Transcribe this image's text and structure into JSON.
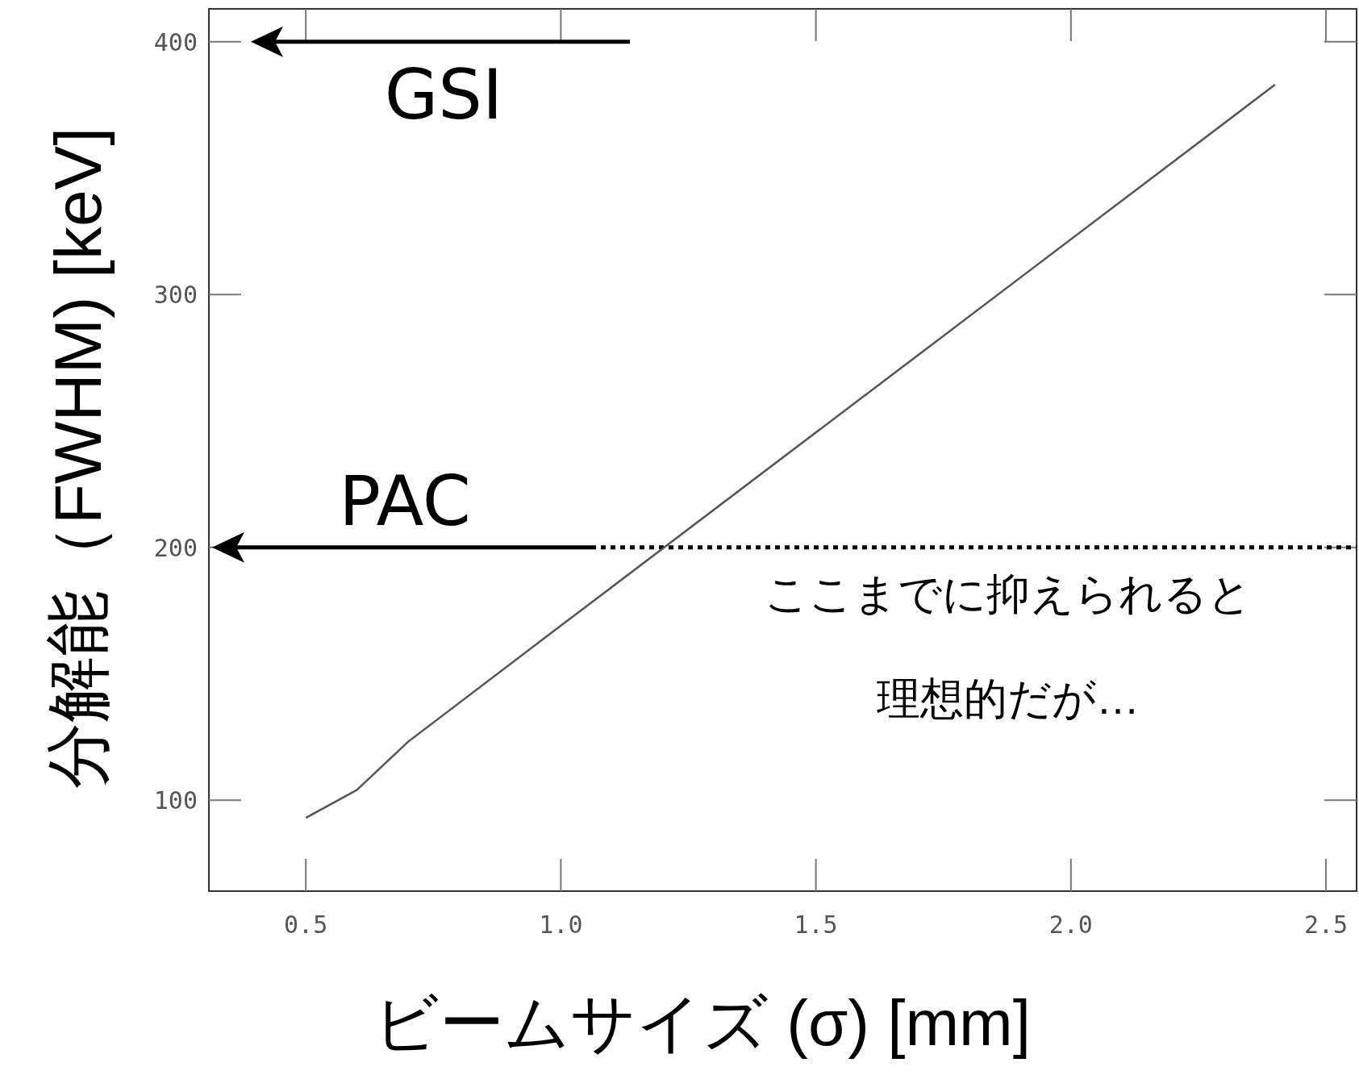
{
  "chart_data": {
    "type": "line",
    "xlabel": "ビームサイズ (σ) [mm]",
    "ylabel": "分解能（FWHM) [keV]",
    "x": [
      0.5,
      0.6,
      0.7,
      1.0,
      1.7,
      2.4
    ],
    "series": [
      {
        "color": "#555555",
        "values": [
          93,
          104,
          123,
          169,
          276,
          383
        ]
      }
    ],
    "xlim": [
      0.31,
      2.56
    ],
    "ylim": [
      64,
      413
    ],
    "xticks": [
      0.5,
      {
        "value": 1.0,
        "label": "1.0"
      },
      1.5,
      {
        "value": 2.0,
        "label": "2.0"
      },
      2.5
    ],
    "yticks": [
      100,
      200,
      300,
      400
    ],
    "ref_lines": [
      {
        "axis": "y",
        "value": 400,
        "label": "GSI",
        "color": "#000000",
        "line_style": "solid"
      },
      {
        "axis": "y",
        "value": 200,
        "label": "PAC",
        "color": "#000000",
        "line_style": "dotted"
      }
    ],
    "annotations": [
      "ここまでに抑えられると",
      "理想的だが…"
    ],
    "grid": false,
    "marker": "none",
    "line_style": "solid"
  }
}
